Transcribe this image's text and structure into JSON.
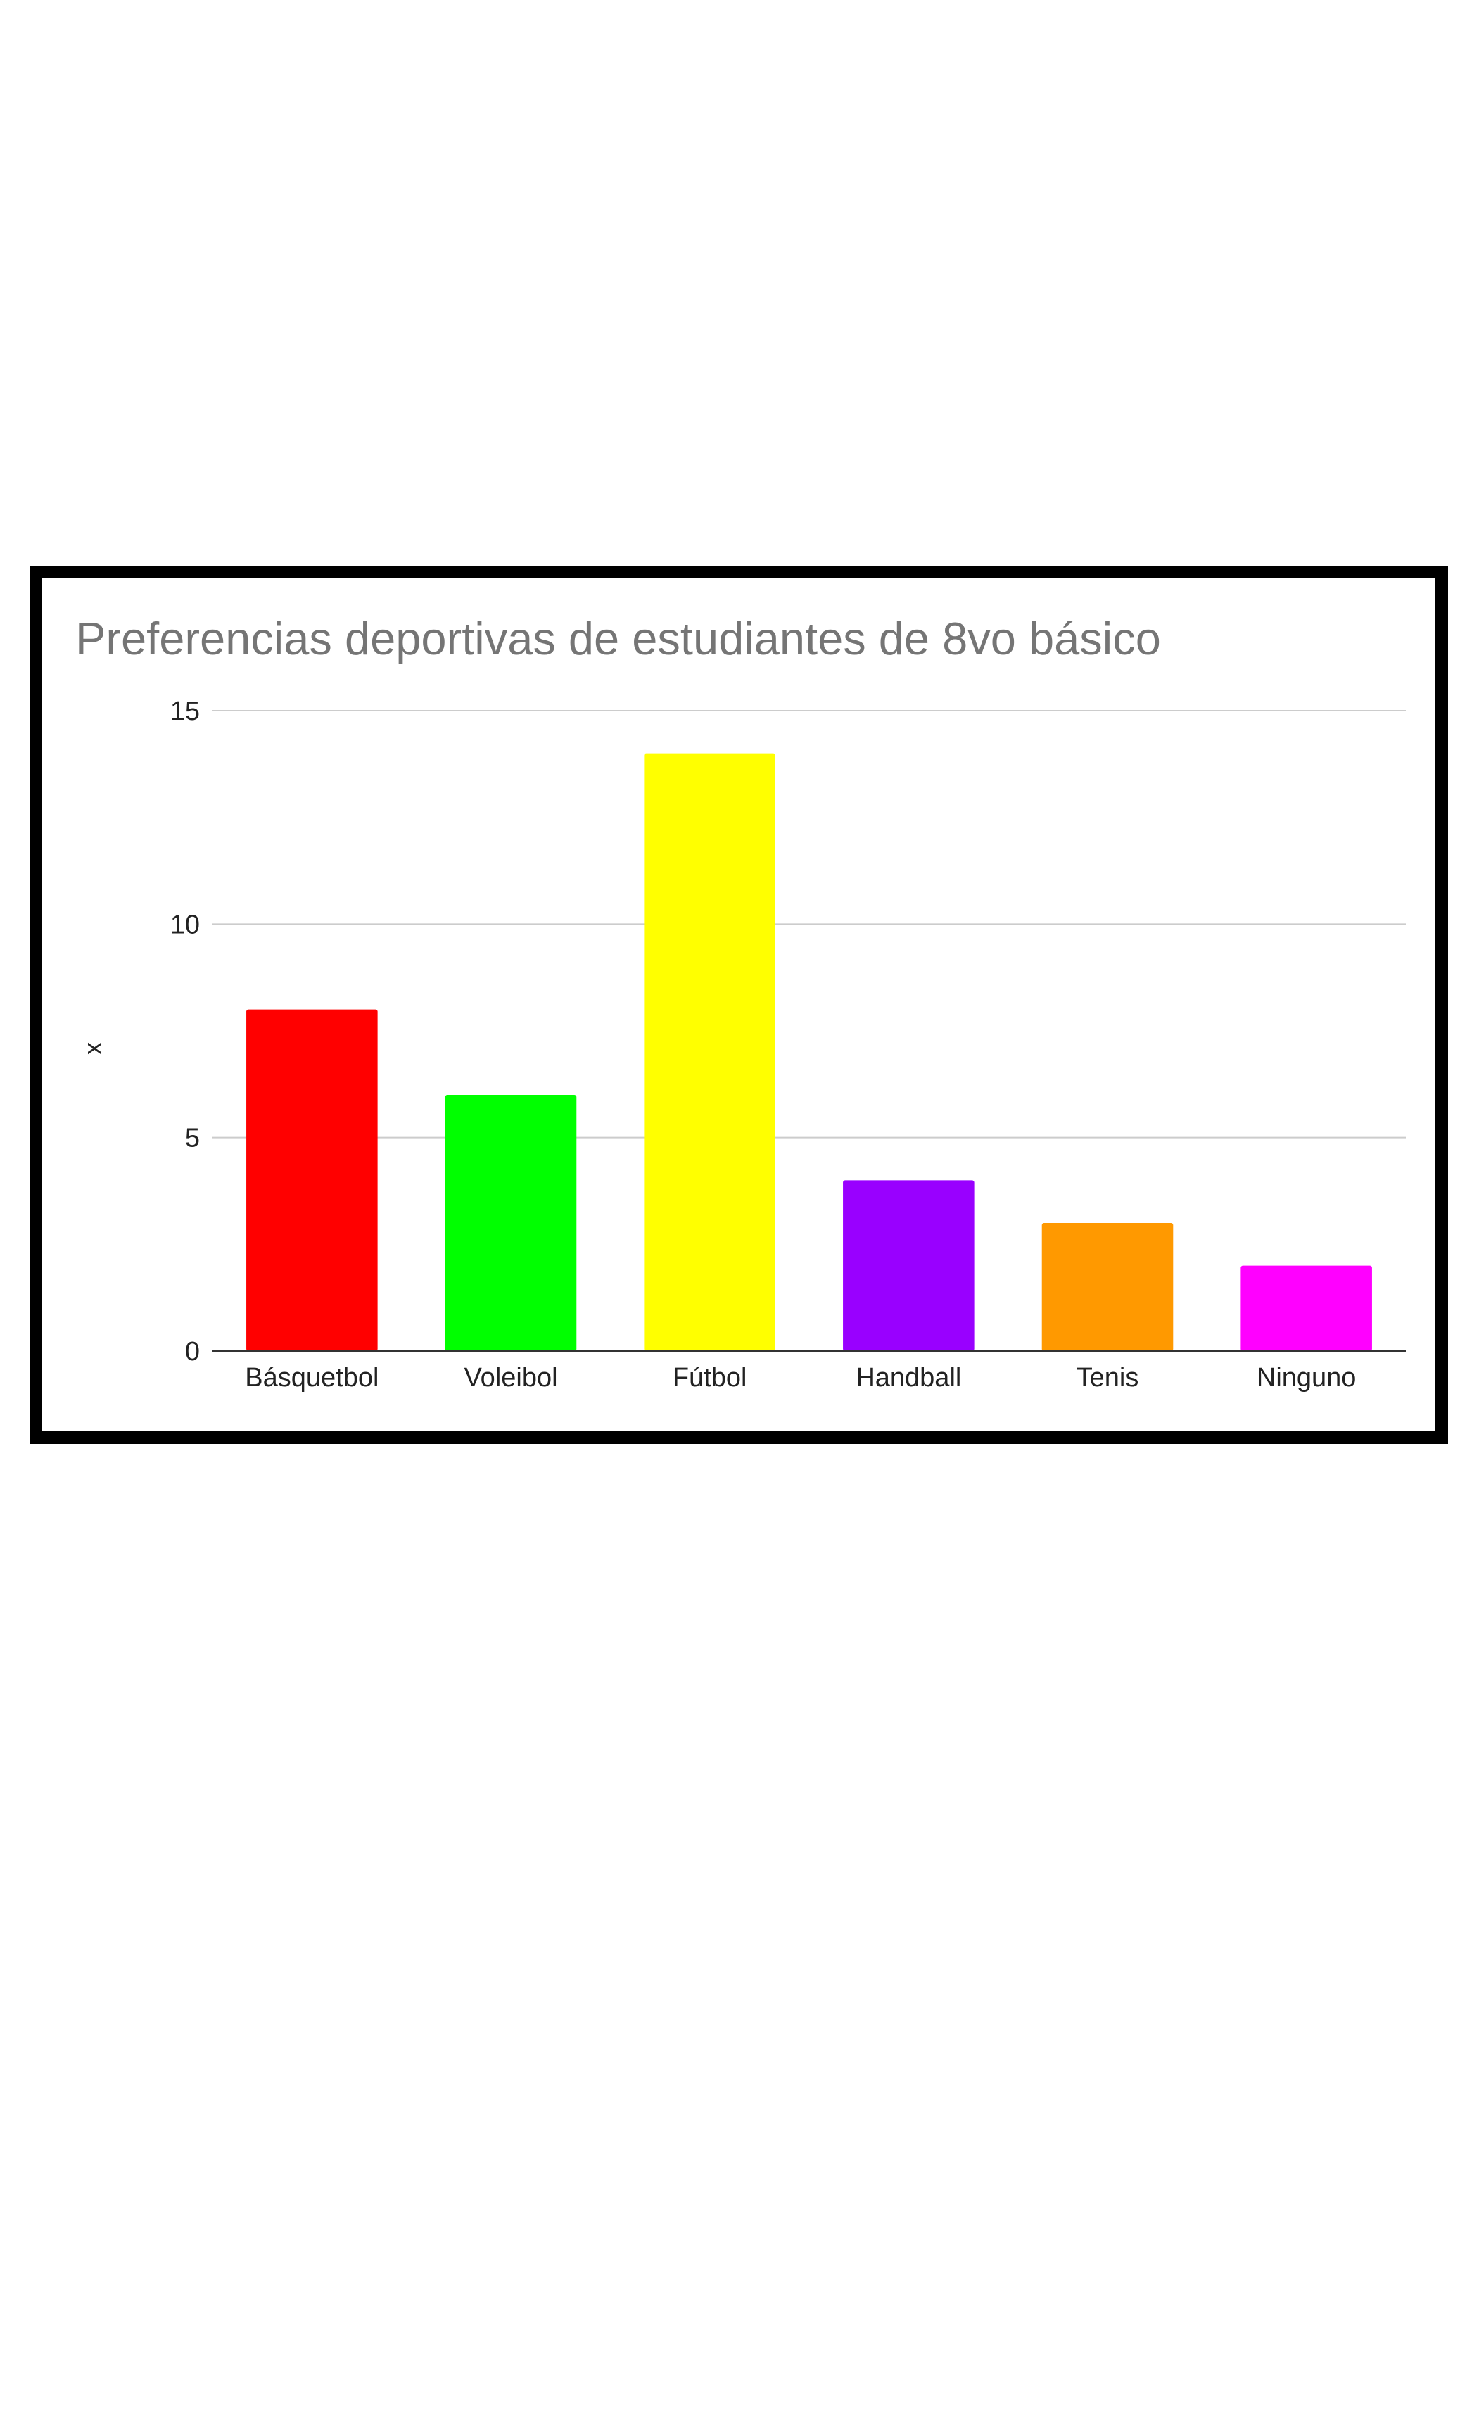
{
  "chart_data": {
    "type": "bar",
    "title": "Preferencias deportivas de estudiantes de 8vo básico",
    "xlabel": "",
    "ylabel": "x",
    "categories": [
      "Básquetbol",
      "Voleibol",
      "Fútbol",
      "Handball",
      "Tenis",
      "Ninguno"
    ],
    "values": [
      8,
      6,
      14,
      4,
      3,
      2
    ],
    "colors": [
      "#ff0000",
      "#00ff00",
      "#ffff00",
      "#9900ff",
      "#ff9900",
      "#ff00ff"
    ],
    "ylim": [
      0,
      15
    ],
    "yticks": [
      0,
      5,
      10,
      15
    ],
    "ytick_labels": [
      "0",
      "5",
      "10",
      "15"
    ],
    "grid": true,
    "legend": "none"
  }
}
